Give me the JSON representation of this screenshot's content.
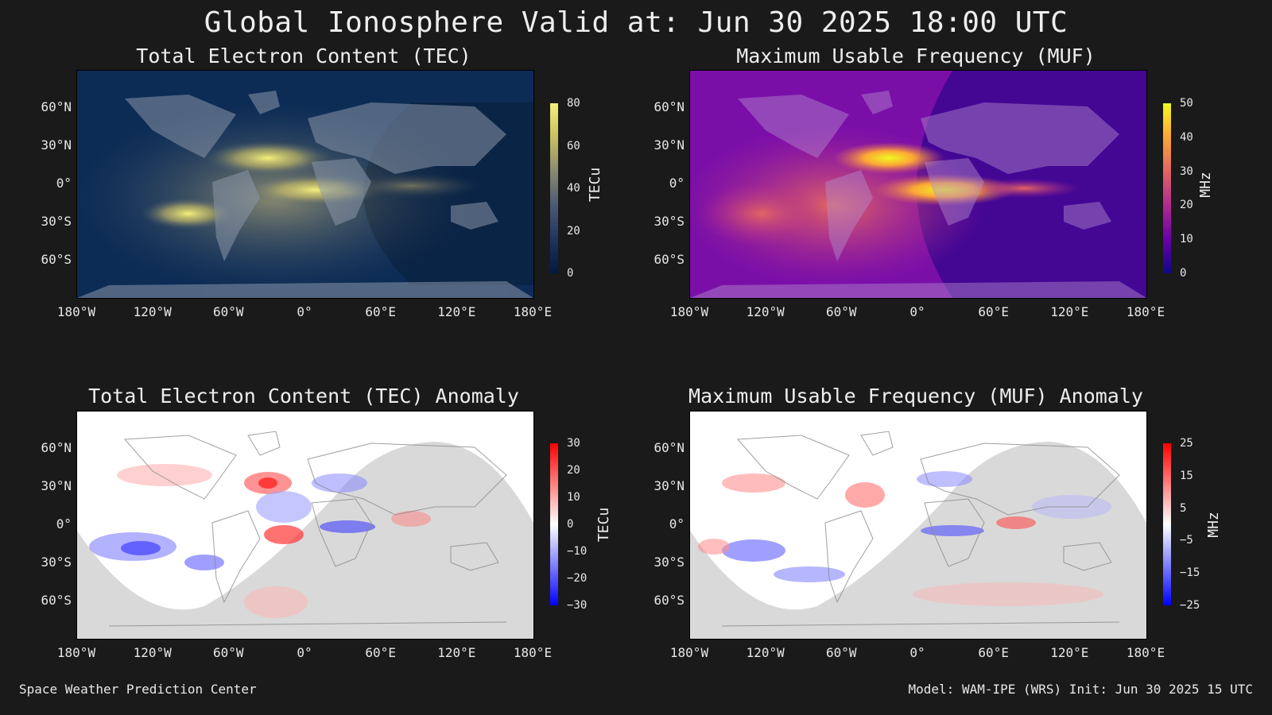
{
  "title": "Global Ionosphere Valid at: Jun 30 2025 18:00 UTC",
  "footer": {
    "left": "Space Weather Prediction Center",
    "right": "Model: WAM-IPE (WRS) Init: Jun 30 2025 15 UTC"
  },
  "lat_ticks": [
    "60°N",
    "30°N",
    "0°",
    "30°S",
    "60°S"
  ],
  "lon_ticks": [
    "180°W",
    "120°W",
    "60°W",
    "0°",
    "60°E",
    "120°E",
    "180°E"
  ],
  "panels": [
    {
      "title": "Total Electron Content (TEC)",
      "colorbar_label": "TECu",
      "colorbar_ticks": [
        "80",
        "60",
        "40",
        "20",
        "0"
      ],
      "colormap": [
        "#001a40",
        "#1d3560",
        "#4a5a72",
        "#8a8a70",
        "#c8c060",
        "#f5f07a"
      ]
    },
    {
      "title": "Maximum Usable Frequency (MUF)",
      "colorbar_label": "MHz",
      "colorbar_ticks": [
        "50",
        "40",
        "30",
        "20",
        "10",
        "0"
      ],
      "colormap": [
        "#0d0887",
        "#6a00a8",
        "#b12a90",
        "#e16462",
        "#fca636",
        "#f0f921"
      ]
    },
    {
      "title": "Total Electron Content (TEC) Anomaly",
      "colorbar_label": "TECu",
      "colorbar_ticks": [
        "30",
        "20",
        "10",
        "0",
        "−10",
        "−20",
        "−30"
      ],
      "colormap": [
        "#0000ff",
        "#8080ff",
        "#ffffff",
        "#ff8080",
        "#ff0000"
      ]
    },
    {
      "title": "Maximum Usable Frequency (MUF) Anomaly",
      "colorbar_label": "MHz",
      "colorbar_ticks": [
        "25",
        "15",
        "5",
        "−5",
        "−15",
        "−25"
      ],
      "colormap": [
        "#0000ff",
        "#8080ff",
        "#ffffff",
        "#ff8080",
        "#ff0000"
      ]
    }
  ]
}
